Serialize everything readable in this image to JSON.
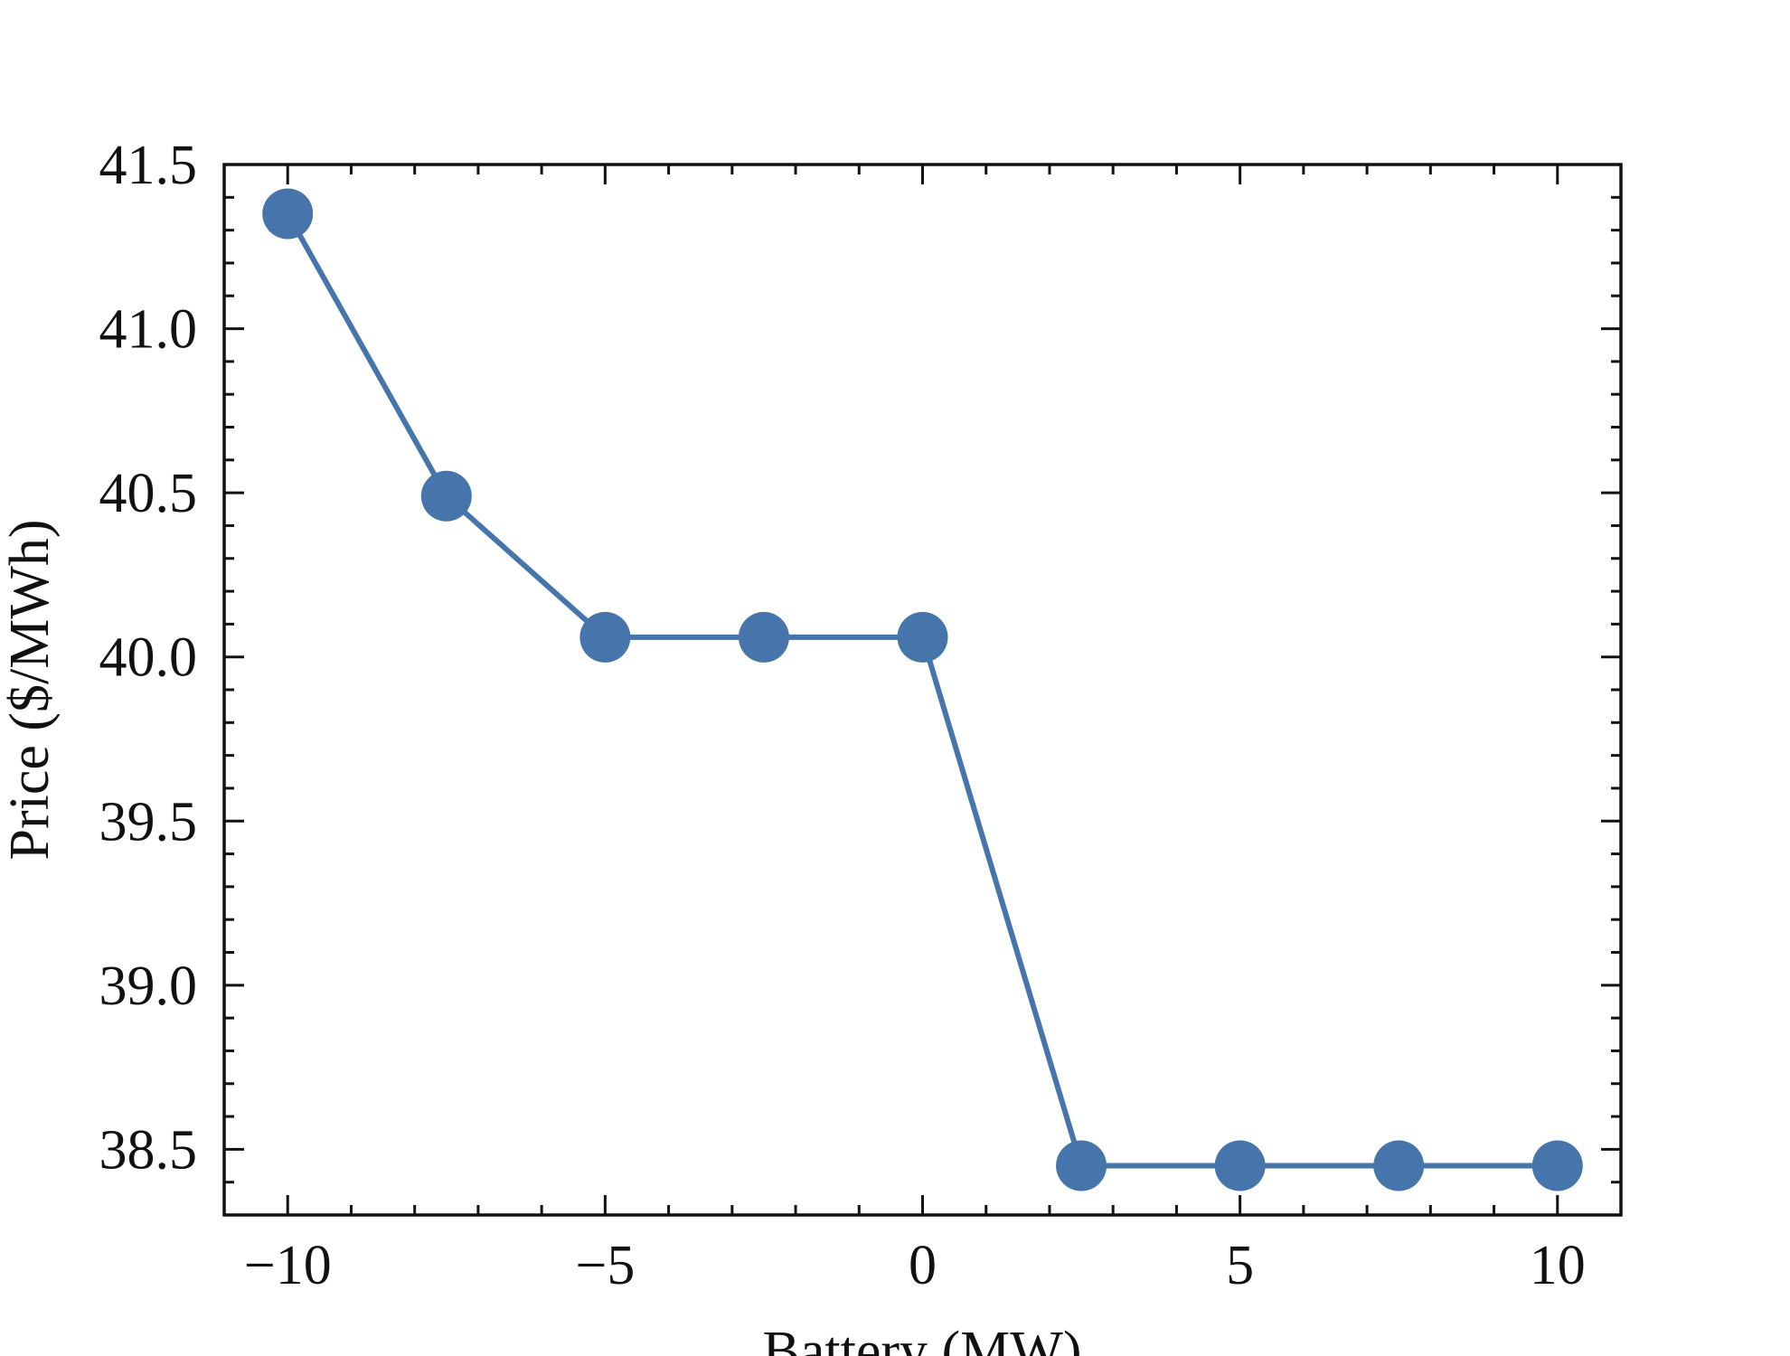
{
  "chart_data": {
    "type": "line",
    "title": "",
    "xlabel": "Battery (MW)",
    "ylabel": "Price ($/MWh)",
    "xlim": [
      -11,
      11
    ],
    "ylim": [
      38.3,
      41.5
    ],
    "x_ticks": [
      -10,
      -5,
      0,
      5,
      10
    ],
    "x_tick_labels": [
      "−10",
      "−5",
      "0",
      "5",
      "10"
    ],
    "y_ticks": [
      38.5,
      39.0,
      39.5,
      40.0,
      40.5,
      41.0,
      41.5
    ],
    "y_tick_labels": [
      "38.5",
      "39.0",
      "39.5",
      "40.0",
      "40.5",
      "41.0",
      "41.5"
    ],
    "grid": false,
    "legend": "none",
    "color": "#4575aa",
    "series": [
      {
        "x": [
          -10,
          -7.5,
          -5,
          -2.5,
          0,
          2.5,
          5,
          7.5,
          10
        ],
        "y": [
          41.35,
          40.49,
          40.06,
          40.06,
          40.06,
          38.45,
          38.45,
          38.45,
          38.45
        ]
      }
    ]
  }
}
